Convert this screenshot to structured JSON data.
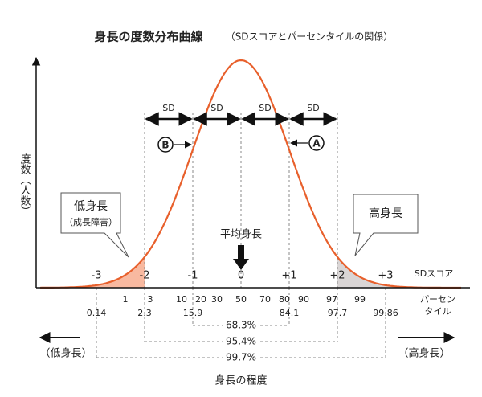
{
  "title": "身長の度数分布曲線",
  "subtitle": "（SDスコアとパーセンタイルの関係）",
  "y_axis_label": "度数（人数）",
  "x_axis_label": "身長の程度",
  "x_axis_ends": {
    "low": "（低身長）",
    "high": "（高身長）"
  },
  "sd_scale": {
    "labels": [
      "-3",
      "-2",
      "-1",
      "0",
      "+1",
      "+2",
      "+3"
    ],
    "axis_label": "SDスコア"
  },
  "percentiles": {
    "row1": [
      "1",
      "3",
      "10",
      "20",
      "30",
      "50",
      "70",
      "80",
      "90",
      "97",
      "99"
    ],
    "row2": [
      "0.14",
      "2.3",
      "15.9",
      "84.1",
      "97.7",
      "99.86"
    ],
    "axis_label_lines": [
      "パーセン",
      "タイル"
    ]
  },
  "sd_arrows": [
    "SD",
    "SD",
    "SD",
    "SD"
  ],
  "markers": {
    "a": "A",
    "b": "B"
  },
  "callouts": {
    "low": {
      "title": "低身長",
      "sub": "（成長障害）"
    },
    "high": {
      "title": "高身長"
    }
  },
  "mean_label": "平均身長",
  "ranges": [
    "68.3%",
    "95.4%",
    "99.7%"
  ]
}
